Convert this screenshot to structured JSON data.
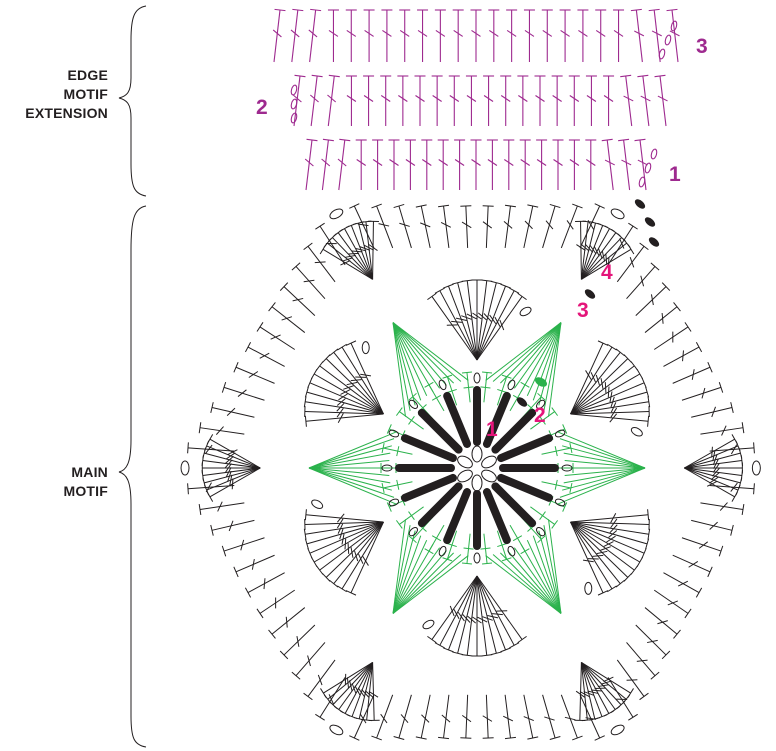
{
  "labels": {
    "edge_motif_extension": [
      "EDGE",
      "MOTIF",
      "EXTENSION"
    ],
    "main_motif": [
      "MAIN",
      "MOTIF"
    ]
  },
  "round_numbers": {
    "edge": [
      "1",
      "2",
      "3"
    ],
    "main": [
      "1",
      "2",
      "3",
      "4"
    ]
  },
  "colors": {
    "edge_stitches": "#9e2a8f",
    "edge_numbers": "#9e2a8f",
    "main_numbers": "#e4157a",
    "round1_stitches": "#231f20",
    "round2_stitches": "#2bb24c",
    "outer_stitches": "#231f20",
    "labels": "#231f20"
  }
}
